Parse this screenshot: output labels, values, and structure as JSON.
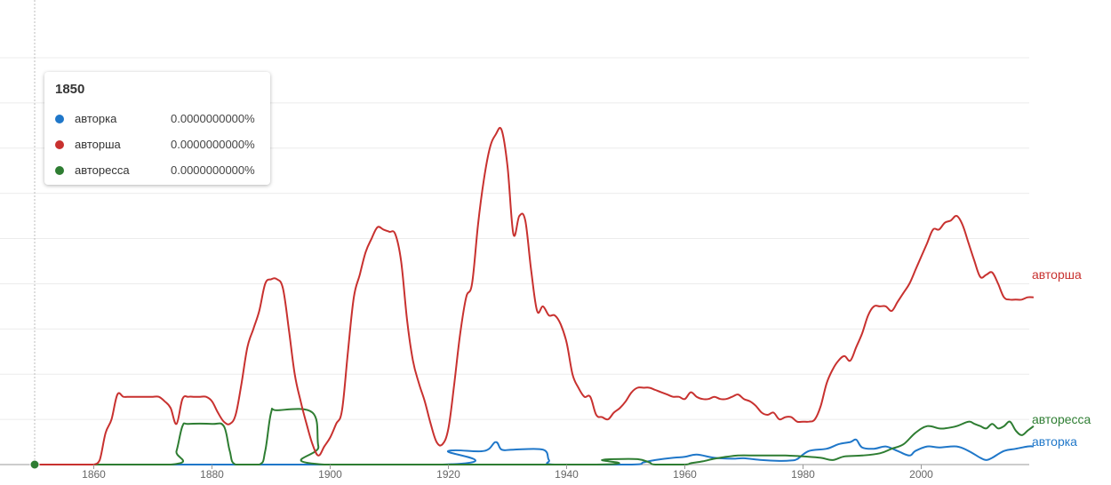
{
  "colors": {
    "авторка": "#1f77c9",
    "авторша": "#c8312f",
    "авторесса": "#2e7d32",
    "grid": "#ececec",
    "axis": "#999999",
    "hover_line": "#bdbdbd"
  },
  "tooltip": {
    "year": "1850",
    "rows": [
      {
        "name": "авторка",
        "value": "0.0000000000%"
      },
      {
        "name": "авторша",
        "value": "0.0000000000%"
      },
      {
        "name": "авторесса",
        "value": "0.0000000000%"
      }
    ]
  },
  "chart_data": {
    "type": "line",
    "title": "",
    "xlabel": "",
    "ylabel": "",
    "xlim": [
      1850,
      2019
    ],
    "ylim": [
      0,
      9
    ],
    "grid": true,
    "legend": "end-of-line labels",
    "x_ticks": [
      "1860",
      "1880",
      "1900",
      "1920",
      "1940",
      "1960",
      "1980",
      "2000"
    ],
    "hover_x": 1850,
    "series": [
      {
        "name": "авторка",
        "points": [
          [
            1850,
            0
          ],
          [
            1919,
            0
          ],
          [
            1920,
            0.3
          ],
          [
            1926,
            0.3
          ],
          [
            1928,
            0.5
          ],
          [
            1929,
            0.33
          ],
          [
            1931,
            0.33
          ],
          [
            1936,
            0.33
          ],
          [
            1937,
            0.1
          ],
          [
            1938,
            0
          ],
          [
            1951,
            0
          ],
          [
            1953,
            0.05
          ],
          [
            1955,
            0.1
          ],
          [
            1958,
            0.15
          ],
          [
            1960,
            0.17
          ],
          [
            1962,
            0.22
          ],
          [
            1965,
            0.15
          ],
          [
            1968,
            0.13
          ],
          [
            1970,
            0.14
          ],
          [
            1973,
            0.1
          ],
          [
            1976,
            0.08
          ],
          [
            1978,
            0.09
          ],
          [
            1979,
            0.12
          ],
          [
            1981,
            0.3
          ],
          [
            1984,
            0.35
          ],
          [
            1986,
            0.45
          ],
          [
            1988,
            0.5
          ],
          [
            1989,
            0.55
          ],
          [
            1990,
            0.38
          ],
          [
            1992,
            0.35
          ],
          [
            1994,
            0.4
          ],
          [
            1996,
            0.3
          ],
          [
            1998,
            0.2
          ],
          [
            1999,
            0.3
          ],
          [
            2001,
            0.4
          ],
          [
            2003,
            0.38
          ],
          [
            2006,
            0.4
          ],
          [
            2008,
            0.3
          ],
          [
            2010,
            0.15
          ],
          [
            2011,
            0.1
          ],
          [
            2012,
            0.15
          ],
          [
            2014,
            0.3
          ],
          [
            2016,
            0.35
          ],
          [
            2018,
            0.4
          ],
          [
            2019,
            0.4
          ]
        ]
      },
      {
        "name": "авторша",
        "points": [
          [
            1850,
            0
          ],
          [
            1851,
            0
          ],
          [
            1852,
            0
          ],
          [
            1853,
            0
          ],
          [
            1854,
            0
          ],
          [
            1855,
            0
          ],
          [
            1856,
            0
          ],
          [
            1857,
            0
          ],
          [
            1858,
            0
          ],
          [
            1859,
            0
          ],
          [
            1860,
            0
          ],
          [
            1861,
            0.1
          ],
          [
            1862,
            0.7
          ],
          [
            1863,
            1
          ],
          [
            1864,
            1.55
          ],
          [
            1865,
            1.5
          ],
          [
            1866,
            1.5
          ],
          [
            1867,
            1.5
          ],
          [
            1868,
            1.5
          ],
          [
            1869,
            1.5
          ],
          [
            1870,
            1.5
          ],
          [
            1871,
            1.5
          ],
          [
            1872,
            1.4
          ],
          [
            1873,
            1.25
          ],
          [
            1874,
            0.9
          ],
          [
            1875,
            1.45
          ],
          [
            1876,
            1.5
          ],
          [
            1877,
            1.5
          ],
          [
            1878,
            1.5
          ],
          [
            1879,
            1.5
          ],
          [
            1880,
            1.4
          ],
          [
            1881,
            1.15
          ],
          [
            1882,
            0.95
          ],
          [
            1883,
            0.9
          ],
          [
            1884,
            1.1
          ],
          [
            1885,
            1.8
          ],
          [
            1886,
            2.6
          ],
          [
            1887,
            3
          ],
          [
            1888,
            3.4
          ],
          [
            1889,
            4
          ],
          [
            1890,
            4.1
          ],
          [
            1891,
            4.1
          ],
          [
            1892,
            3.9
          ],
          [
            1893,
            3
          ],
          [
            1894,
            2
          ],
          [
            1895,
            1.4
          ],
          [
            1896,
            0.9
          ],
          [
            1897,
            0.45
          ],
          [
            1898,
            0.2
          ],
          [
            1899,
            0.4
          ],
          [
            1900,
            0.6
          ],
          [
            1901,
            0.9
          ],
          [
            1902,
            1.2
          ],
          [
            1903,
            2.5
          ],
          [
            1904,
            3.7
          ],
          [
            1905,
            4.2
          ],
          [
            1906,
            4.7
          ],
          [
            1907,
            5
          ],
          [
            1908,
            5.25
          ],
          [
            1909,
            5.2
          ],
          [
            1910,
            5.15
          ],
          [
            1911,
            5.1
          ],
          [
            1912,
            4.5
          ],
          [
            1913,
            3.2
          ],
          [
            1914,
            2.3
          ],
          [
            1915,
            1.8
          ],
          [
            1916,
            1.4
          ],
          [
            1917,
            0.9
          ],
          [
            1918,
            0.5
          ],
          [
            1919,
            0.45
          ],
          [
            1920,
            0.8
          ],
          [
            1921,
            1.8
          ],
          [
            1922,
            2.9
          ],
          [
            1923,
            3.7
          ],
          [
            1924,
            4
          ],
          [
            1925,
            5.3
          ],
          [
            1926,
            6.3
          ],
          [
            1927,
            7
          ],
          [
            1928,
            7.3
          ],
          [
            1929,
            7.4
          ],
          [
            1930,
            6.6
          ],
          [
            1931,
            5.1
          ],
          [
            1932,
            5.5
          ],
          [
            1933,
            5.4
          ],
          [
            1934,
            4.3
          ],
          [
            1935,
            3.4
          ],
          [
            1936,
            3.5
          ],
          [
            1937,
            3.3
          ],
          [
            1938,
            3.3
          ],
          [
            1939,
            3.1
          ],
          [
            1940,
            2.7
          ],
          [
            1941,
            2
          ],
          [
            1942,
            1.7
          ],
          [
            1943,
            1.5
          ],
          [
            1944,
            1.5
          ],
          [
            1945,
            1.1
          ],
          [
            1946,
            1.05
          ],
          [
            1947,
            1
          ],
          [
            1948,
            1.15
          ],
          [
            1949,
            1.25
          ],
          [
            1950,
            1.4
          ],
          [
            1951,
            1.6
          ],
          [
            1952,
            1.7
          ],
          [
            1953,
            1.7
          ],
          [
            1954,
            1.7
          ],
          [
            1955,
            1.65
          ],
          [
            1956,
            1.6
          ],
          [
            1957,
            1.55
          ],
          [
            1958,
            1.5
          ],
          [
            1959,
            1.5
          ],
          [
            1960,
            1.45
          ],
          [
            1961,
            1.6
          ],
          [
            1962,
            1.5
          ],
          [
            1963,
            1.45
          ],
          [
            1964,
            1.45
          ],
          [
            1965,
            1.5
          ],
          [
            1966,
            1.45
          ],
          [
            1967,
            1.45
          ],
          [
            1968,
            1.5
          ],
          [
            1969,
            1.55
          ],
          [
            1970,
            1.45
          ],
          [
            1971,
            1.4
          ],
          [
            1972,
            1.3
          ],
          [
            1973,
            1.15
          ],
          [
            1974,
            1.1
          ],
          [
            1975,
            1.15
          ],
          [
            1976,
            1
          ],
          [
            1977,
            1.05
          ],
          [
            1978,
            1.05
          ],
          [
            1979,
            0.95
          ],
          [
            1980,
            0.95
          ],
          [
            1981,
            0.95
          ],
          [
            1982,
            1
          ],
          [
            1983,
            1.3
          ],
          [
            1984,
            1.8
          ],
          [
            1985,
            2.1
          ],
          [
            1986,
            2.3
          ],
          [
            1987,
            2.4
          ],
          [
            1988,
            2.3
          ],
          [
            1989,
            2.6
          ],
          [
            1990,
            2.9
          ],
          [
            1991,
            3.3
          ],
          [
            1992,
            3.5
          ],
          [
            1993,
            3.5
          ],
          [
            1994,
            3.5
          ],
          [
            1995,
            3.4
          ],
          [
            1996,
            3.6
          ],
          [
            1997,
            3.8
          ],
          [
            1998,
            4
          ],
          [
            1999,
            4.3
          ],
          [
            2000,
            4.6
          ],
          [
            2001,
            4.9
          ],
          [
            2002,
            5.2
          ],
          [
            2003,
            5.2
          ],
          [
            2004,
            5.35
          ],
          [
            2005,
            5.4
          ],
          [
            2006,
            5.5
          ],
          [
            2007,
            5.3
          ],
          [
            2008,
            4.9
          ],
          [
            2009,
            4.5
          ],
          [
            2010,
            4.15
          ],
          [
            2011,
            4.2
          ],
          [
            2012,
            4.25
          ],
          [
            2013,
            4
          ],
          [
            2014,
            3.7
          ],
          [
            2015,
            3.65
          ],
          [
            2016,
            3.65
          ],
          [
            2017,
            3.65
          ],
          [
            2018,
            3.7
          ],
          [
            2019,
            3.7
          ]
        ]
      },
      {
        "name": "авторесса",
        "points": [
          [
            1850,
            0
          ],
          [
            1873,
            0
          ],
          [
            1874,
            0.3
          ],
          [
            1875,
            0.85
          ],
          [
            1876,
            0.9
          ],
          [
            1880,
            0.9
          ],
          [
            1882,
            0.85
          ],
          [
            1883,
            0.3
          ],
          [
            1884,
            0
          ],
          [
            1888,
            0
          ],
          [
            1889,
            0.3
          ],
          [
            1890,
            1.15
          ],
          [
            1891,
            1.2
          ],
          [
            1897,
            1.15
          ],
          [
            1898,
            0.4
          ],
          [
            1899,
            0
          ],
          [
            1945,
            0
          ],
          [
            1946,
            0.1
          ],
          [
            1948,
            0.12
          ],
          [
            1952,
            0.12
          ],
          [
            1954,
            0.05
          ],
          [
            1955,
            0
          ],
          [
            1960,
            0
          ],
          [
            1961,
            0.03
          ],
          [
            1963,
            0.07
          ],
          [
            1965,
            0.13
          ],
          [
            1967,
            0.17
          ],
          [
            1969,
            0.2
          ],
          [
            1972,
            0.2
          ],
          [
            1975,
            0.2
          ],
          [
            1977,
            0.2
          ],
          [
            1980,
            0.18
          ],
          [
            1983,
            0.15
          ],
          [
            1985,
            0.1
          ],
          [
            1987,
            0.18
          ],
          [
            1990,
            0.2
          ],
          [
            1993,
            0.25
          ],
          [
            1995,
            0.35
          ],
          [
            1997,
            0.45
          ],
          [
            1999,
            0.7
          ],
          [
            2001,
            0.85
          ],
          [
            2003,
            0.8
          ],
          [
            2004,
            0.8
          ],
          [
            2006,
            0.85
          ],
          [
            2008,
            0.95
          ],
          [
            2009,
            0.9
          ],
          [
            2010,
            0.85
          ],
          [
            2011,
            0.8
          ],
          [
            2012,
            0.9
          ],
          [
            2013,
            0.8
          ],
          [
            2014,
            0.85
          ],
          [
            2015,
            0.95
          ],
          [
            2016,
            0.75
          ],
          [
            2017,
            0.65
          ],
          [
            2018,
            0.75
          ],
          [
            2019,
            0.85
          ]
        ]
      }
    ]
  }
}
